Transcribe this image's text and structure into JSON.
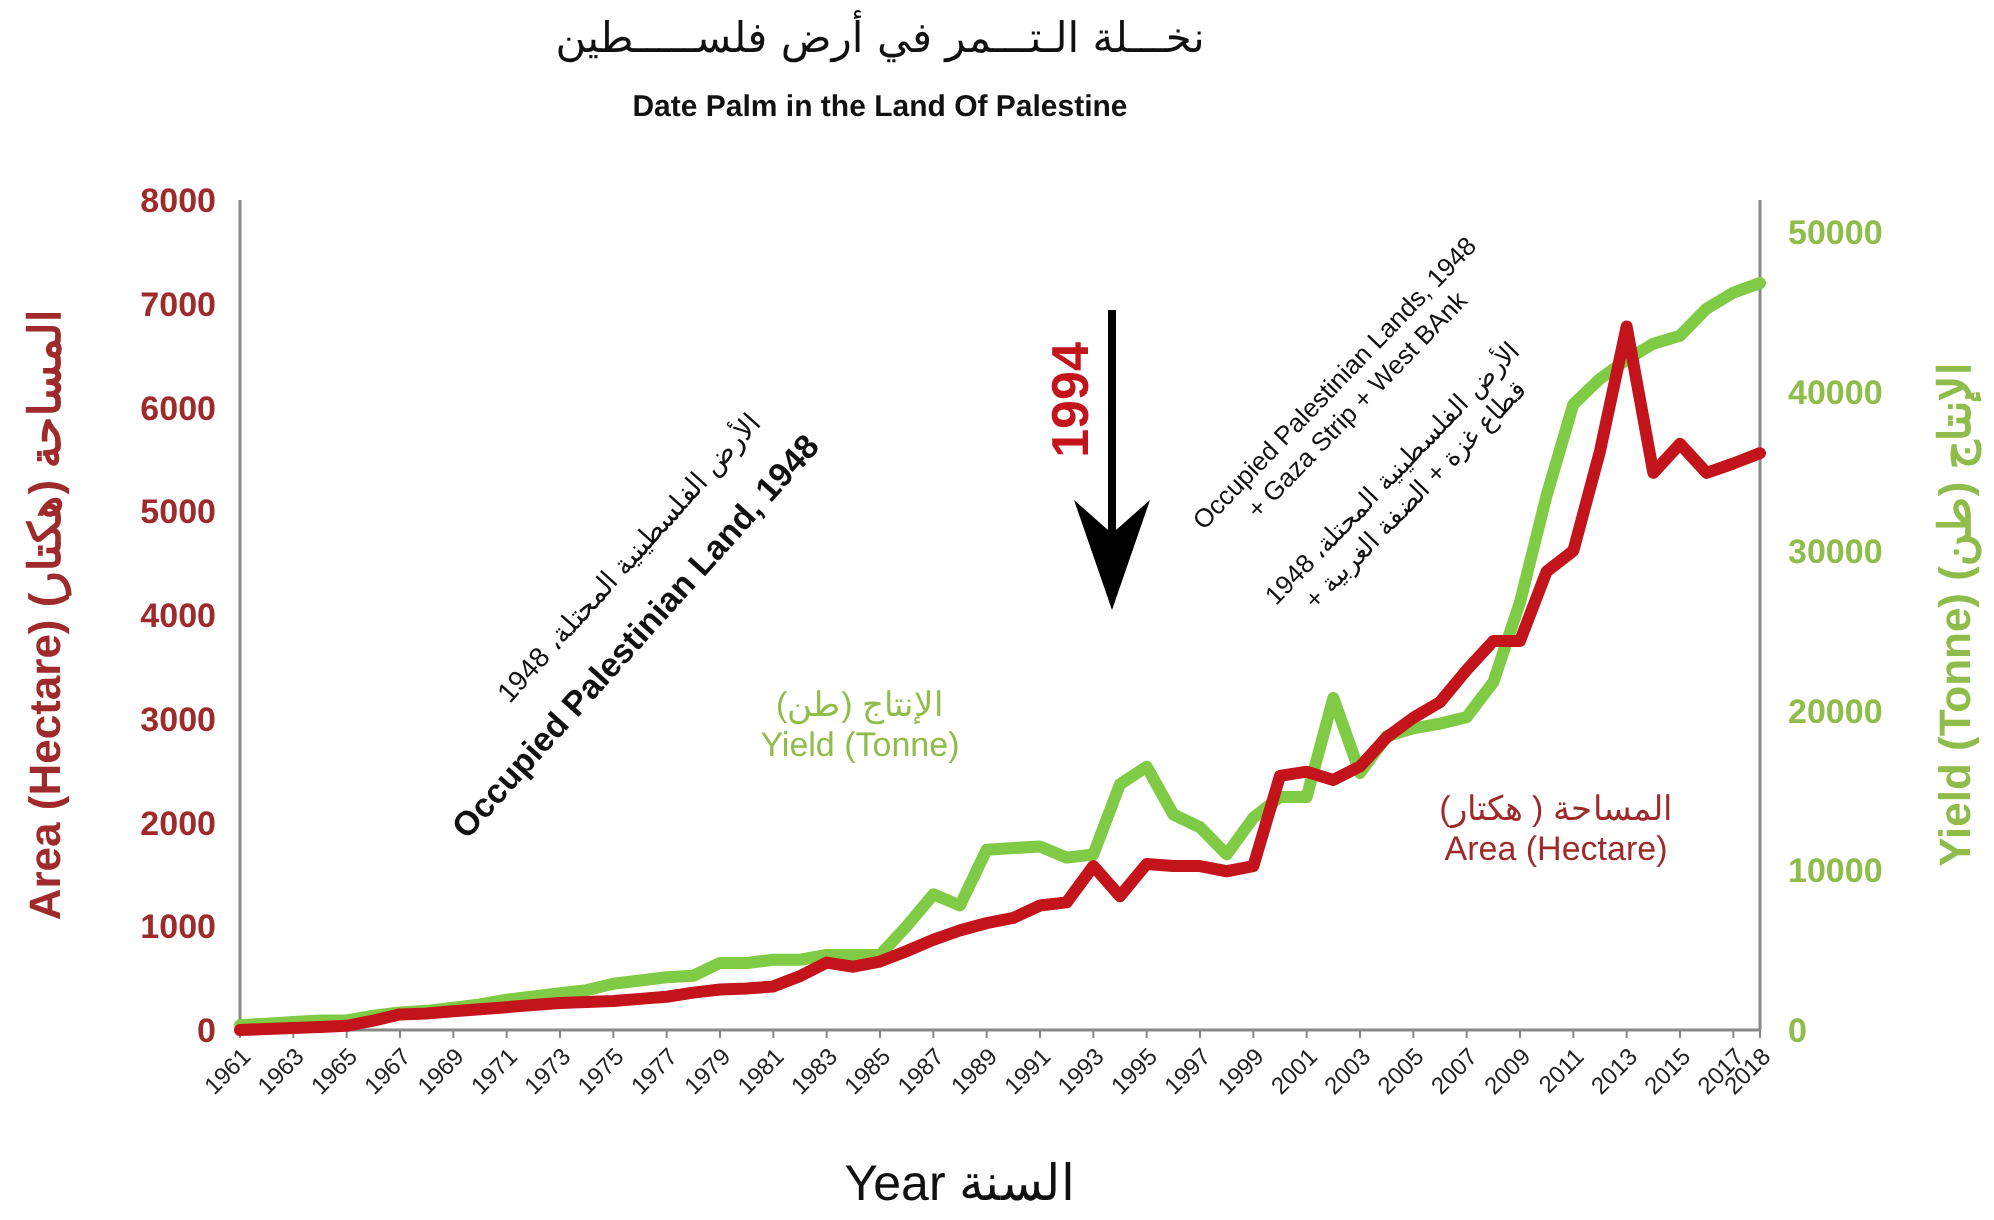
{
  "chart_data": {
    "type": "line",
    "title": "نخـــلة الـتـــمر في أرض فلســـــطين",
    "subtitle": "Date Palm in the Land Of Palestine",
    "xlabel": "Year   السنة",
    "ylabel": "Area (Hectare)   المساحة (هكتار)",
    "y2label": "Yield (Tonne)   الإنتاج (طن)",
    "x": [
      1961,
      1962,
      1963,
      1964,
      1965,
      1966,
      1967,
      1968,
      1969,
      1970,
      1971,
      1972,
      1973,
      1974,
      1975,
      1976,
      1977,
      1978,
      1979,
      1980,
      1981,
      1982,
      1983,
      1984,
      1985,
      1986,
      1987,
      1988,
      1989,
      1990,
      1991,
      1992,
      1993,
      1994,
      1995,
      1996,
      1997,
      1998,
      1999,
      2000,
      2001,
      2002,
      2003,
      2004,
      2005,
      2006,
      2007,
      2008,
      2009,
      2010,
      2011,
      2012,
      2013,
      2014,
      2015,
      2016,
      2017,
      2018
    ],
    "xlim": [
      1961,
      2018
    ],
    "xticks": [
      1961,
      1963,
      1965,
      1967,
      1969,
      1971,
      1973,
      1975,
      1977,
      1979,
      1981,
      1983,
      1985,
      1987,
      1989,
      1991,
      1993,
      1995,
      1997,
      1999,
      2001,
      2003,
      2005,
      2007,
      2009,
      2011,
      2013,
      2015,
      2017,
      2018
    ],
    "ylim": [
      0,
      8000
    ],
    "yticks": [
      0,
      1000,
      2000,
      3000,
      4000,
      5000,
      6000,
      7000,
      8000
    ],
    "y2lim": [
      0,
      52000
    ],
    "y2ticks": [
      0,
      10000,
      20000,
      30000,
      40000,
      50000
    ],
    "series": [
      {
        "name": "المساحة ( هكتار)\nArea (Hectare)",
        "color": "#c3141c",
        "values": [
          0,
          10,
          20,
          30,
          40,
          90,
          150,
          160,
          180,
          200,
          220,
          240,
          260,
          270,
          280,
          300,
          320,
          360,
          390,
          400,
          420,
          520,
          650,
          610,
          660,
          760,
          870,
          960,
          1030,
          1080,
          1200,
          1230,
          1580,
          1290,
          1600,
          1580,
          1580,
          1530,
          1580,
          2450,
          2490,
          2410,
          2540,
          2820,
          3010,
          3160,
          3470,
          3750,
          3750,
          4420,
          4620,
          5580,
          6780,
          5370,
          5650,
          5370,
          5460,
          5560
        ]
      },
      {
        "name": "الإنتاج (طن)\nYield (Tonne)",
        "color": "#7fcb45",
        "axis": "y2",
        "values": [
          300,
          400,
          500,
          600,
          600,
          900,
          1100,
          1200,
          1400,
          1600,
          1900,
          2100,
          2300,
          2500,
          2900,
          3100,
          3300,
          3400,
          4200,
          4200,
          4400,
          4400,
          4700,
          4700,
          4700,
          6500,
          8500,
          7800,
          11300,
          11400,
          11500,
          10800,
          11000,
          15400,
          16500,
          13500,
          12700,
          11000,
          13300,
          14600,
          14600,
          20800,
          16100,
          18400,
          18900,
          19200,
          19600,
          21800,
          26800,
          33500,
          39200,
          40800,
          42000,
          43000,
          43500,
          45200,
          46200,
          46800
        ]
      }
    ],
    "annotations": [
      "الأرض الفلسطينية المحتلة، 1948",
      "Occupied Palestinian Land, 1948",
      "Occupied Palestinian Lands, 1948\n+ Gaza Strip + West BAnk",
      "الأرض الفلسطينية المحتلة، 1948\n+ قطاع غزة + الضفة الغربية",
      "1994"
    ]
  }
}
